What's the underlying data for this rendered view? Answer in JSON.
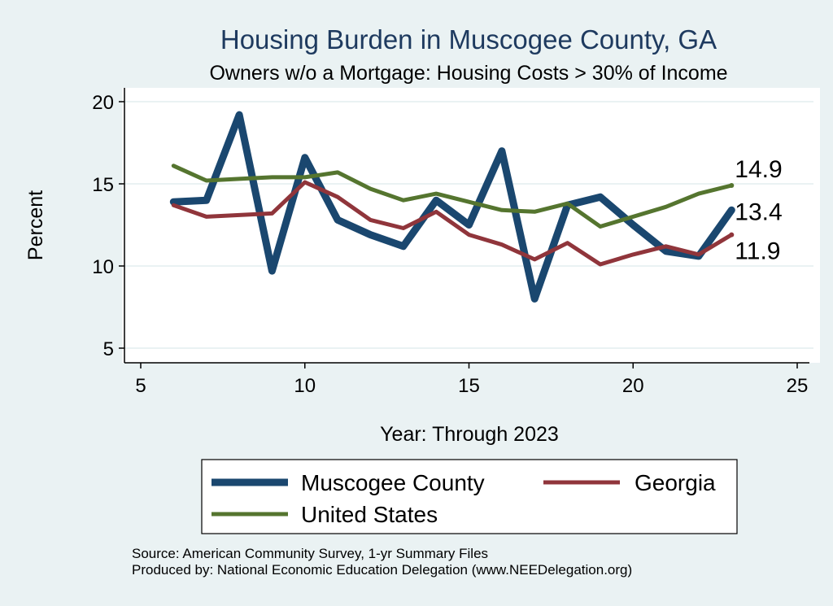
{
  "chart_data": {
    "type": "line",
    "title": "Housing Burden in Muscogee County, GA",
    "subtitle": "Owners w/o a Mortgage: Housing Costs > 30% of Income",
    "xlabel": "Year: Through 2023",
    "ylabel": "Percent",
    "xlim": [
      5,
      25
    ],
    "ylim": [
      5,
      20
    ],
    "xticks": [
      5,
      10,
      15,
      20,
      25
    ],
    "yticks": [
      5,
      10,
      15,
      20
    ],
    "grid": true,
    "legend_position": "bottom",
    "series": [
      {
        "name": "Muscogee County",
        "color": "#1a476f",
        "x": [
          6,
          7,
          8,
          9,
          10,
          11,
          12,
          13,
          14,
          15,
          16,
          17,
          18,
          19,
          20,
          21,
          22,
          23
        ],
        "values": [
          13.9,
          14.0,
          19.2,
          9.7,
          16.6,
          12.8,
          11.9,
          11.2,
          14.0,
          12.5,
          17.0,
          8.0,
          13.7,
          14.2,
          12.5,
          10.9,
          10.6,
          13.4
        ],
        "end_label": "13.4"
      },
      {
        "name": "Georgia",
        "color": "#90353b",
        "x": [
          6,
          7,
          8,
          9,
          10,
          11,
          12,
          13,
          14,
          15,
          16,
          17,
          18,
          19,
          20,
          21,
          22,
          23
        ],
        "values": [
          13.7,
          13.0,
          13.1,
          13.2,
          15.1,
          14.2,
          12.8,
          12.3,
          13.3,
          11.9,
          11.3,
          10.4,
          11.4,
          10.1,
          10.7,
          11.2,
          10.7,
          11.9
        ],
        "end_label": "11.9"
      },
      {
        "name": "United States",
        "color": "#55752f",
        "x": [
          6,
          7,
          8,
          9,
          10,
          11,
          12,
          13,
          14,
          15,
          16,
          17,
          18,
          19,
          20,
          21,
          22,
          23
        ],
        "values": [
          16.1,
          15.2,
          15.3,
          15.4,
          15.4,
          15.7,
          14.7,
          14.0,
          14.4,
          13.9,
          13.4,
          13.3,
          13.8,
          12.4,
          13.0,
          13.6,
          14.4,
          14.9
        ],
        "end_label": "14.9"
      }
    ]
  },
  "source": {
    "line1": "Source: American Community Survey, 1-yr Summary Files",
    "line2": "Produced by: National Economic Education Delegation (www.NEEDelegation.org)"
  }
}
